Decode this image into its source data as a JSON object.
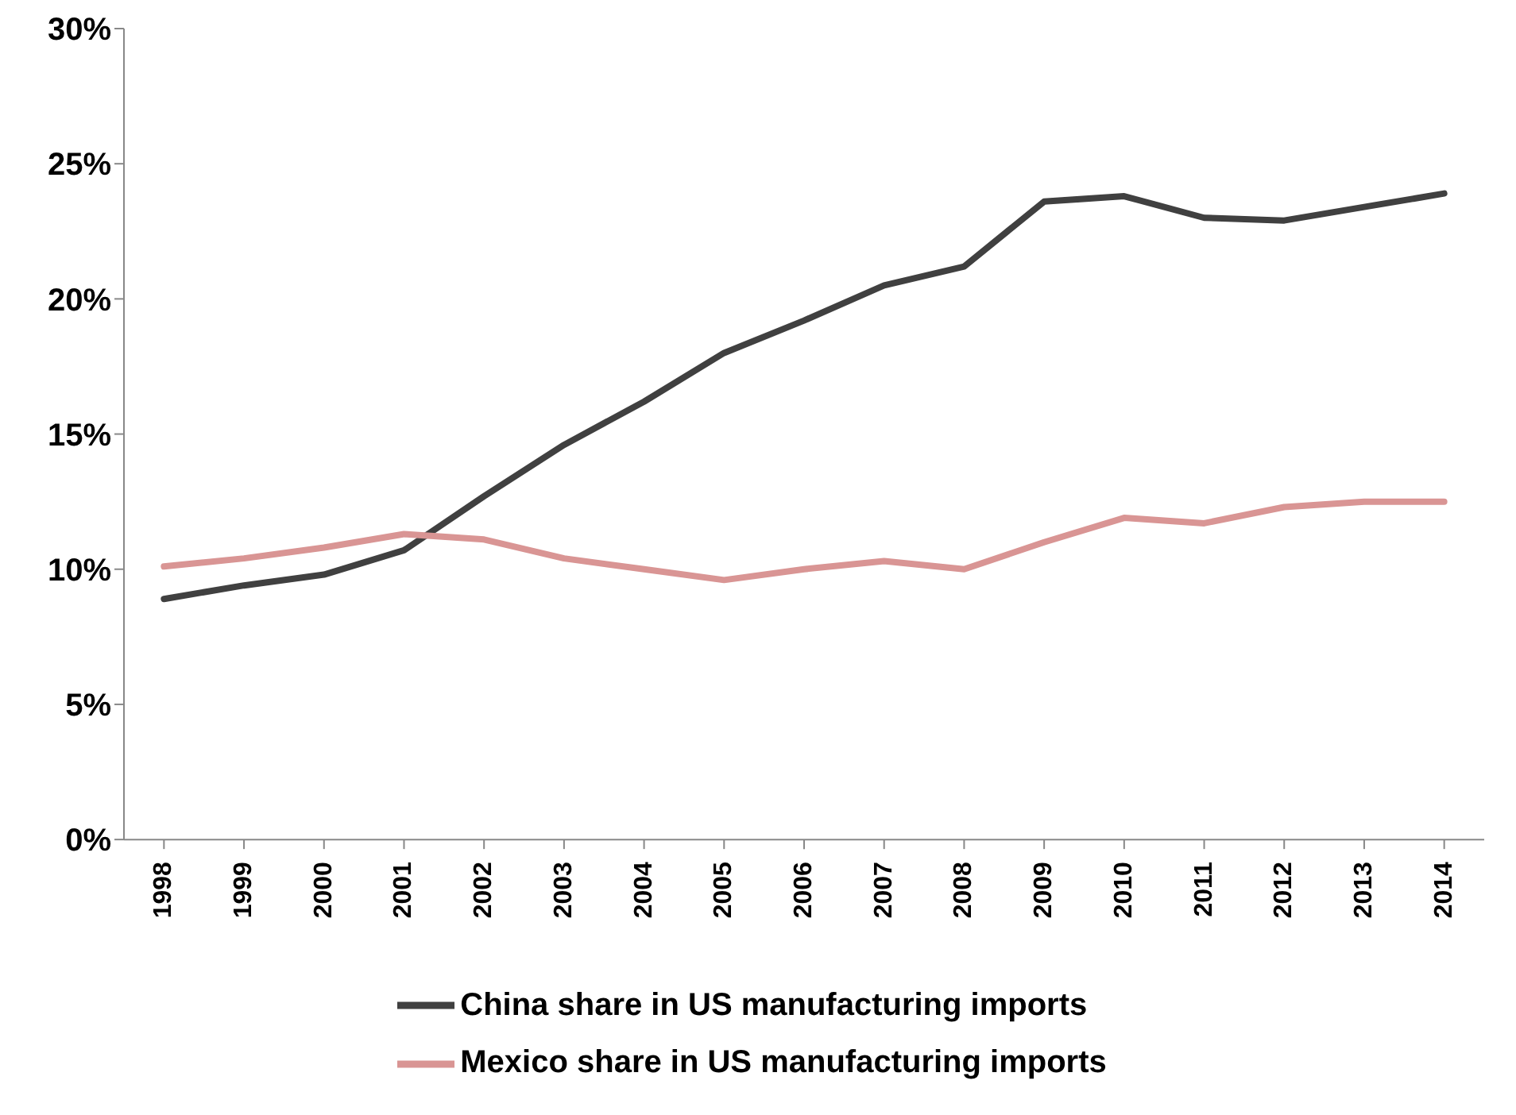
{
  "chart_data": {
    "type": "line",
    "categories": [
      "1998",
      "1999",
      "2000",
      "2001",
      "2002",
      "2003",
      "2004",
      "2005",
      "2006",
      "2007",
      "2008",
      "2009",
      "2010",
      "2011",
      "2012",
      "2013",
      "2014"
    ],
    "series": [
      {
        "name": "China share in US manufacturing imports",
        "color": "#404040",
        "values": [
          8.9,
          9.4,
          9.8,
          10.7,
          12.7,
          14.6,
          16.2,
          18.0,
          19.2,
          20.5,
          21.2,
          23.6,
          23.8,
          23.0,
          22.9,
          23.4,
          23.9
        ]
      },
      {
        "name": "Mexico share in US manufacturing imports",
        "color": "#d99594",
        "values": [
          10.1,
          10.4,
          10.8,
          11.3,
          11.1,
          10.4,
          10.0,
          9.6,
          10.0,
          10.3,
          10.0,
          11.0,
          11.9,
          11.7,
          12.3,
          12.5,
          12.5
        ]
      }
    ],
    "ylim": [
      0,
      30
    ],
    "yticks": [
      {
        "value": 0,
        "label": "0%"
      },
      {
        "value": 5,
        "label": "5%"
      },
      {
        "value": 10,
        "label": "10%"
      },
      {
        "value": 15,
        "label": "15%"
      },
      {
        "value": 20,
        "label": "20%"
      },
      {
        "value": 25,
        "label": "25%"
      },
      {
        "value": 30,
        "label": "30%"
      }
    ],
    "grid": false,
    "legend": "bottom",
    "marker": "none",
    "line_style": "solid"
  }
}
